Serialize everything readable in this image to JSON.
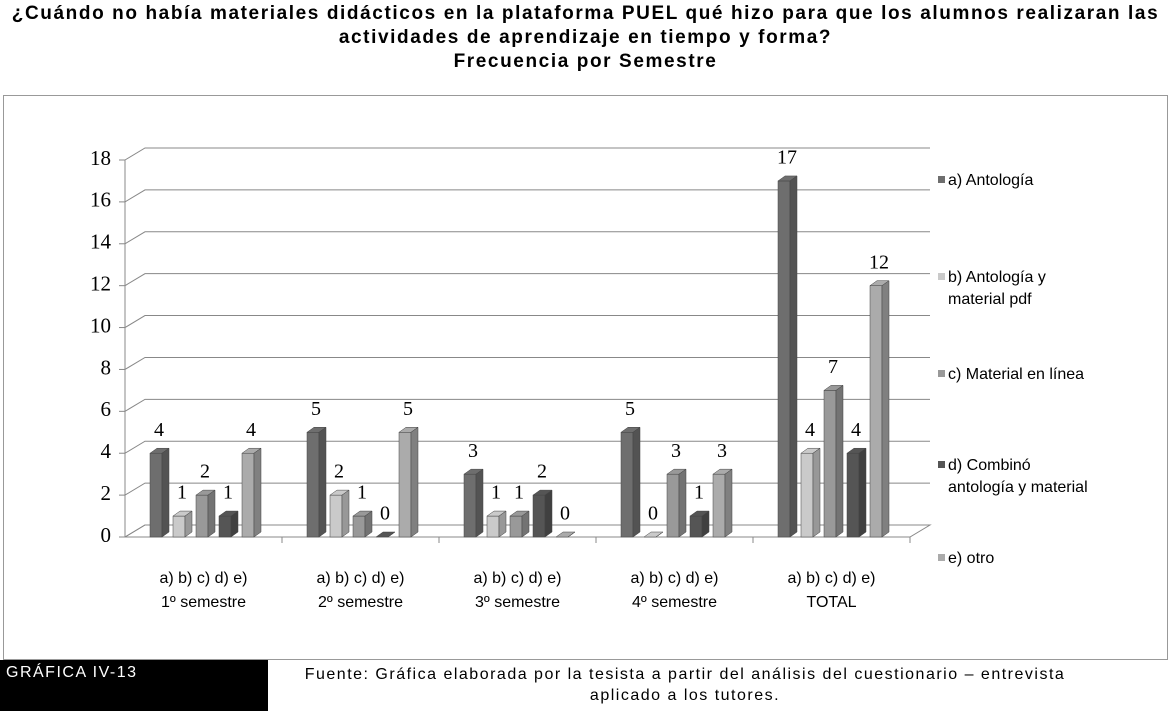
{
  "chart_data": {
    "type": "bar3d",
    "title": "¿Cuándo no había materiales didácticos en la plataforma PUEL qué hizo para que los alumnos realizaran las actividades de aprendizaje en tiempo y forma?",
    "subtitle": "Frecuencia por Semestre",
    "category_sublabel": "a) b) c) d) e)",
    "categories": [
      "1º semestre",
      "2º semestre",
      "3º semestre",
      "4º semestre",
      "TOTAL"
    ],
    "series": [
      {
        "name": "a) Antología",
        "color": "#6e6e6e",
        "values": [
          4,
          5,
          3,
          5,
          17
        ]
      },
      {
        "name": "b) Antología y material pdf",
        "color": "#cacaca",
        "values": [
          1,
          2,
          1,
          0,
          4
        ]
      },
      {
        "name": "c) Material en línea",
        "color": "#999999",
        "values": [
          2,
          1,
          1,
          3,
          7
        ]
      },
      {
        "name": "d) Combinó antología y material",
        "color": "#555555",
        "values": [
          1,
          0,
          2,
          1,
          4
        ]
      },
      {
        "name": "e) otro",
        "color": "#ababab",
        "values": [
          4,
          5,
          0,
          3,
          12
        ]
      }
    ],
    "ylim": [
      0,
      18
    ],
    "yticks": [
      0,
      2,
      4,
      6,
      8,
      10,
      12,
      14,
      16,
      18
    ],
    "grid": true,
    "legend": "right"
  },
  "footer": {
    "label": "GRÁFICA IV-13",
    "source": "Fuente: Gráfica elaborada por la tesista a partir del análisis del cuestionario – entrevista aplicado a los tutores."
  }
}
